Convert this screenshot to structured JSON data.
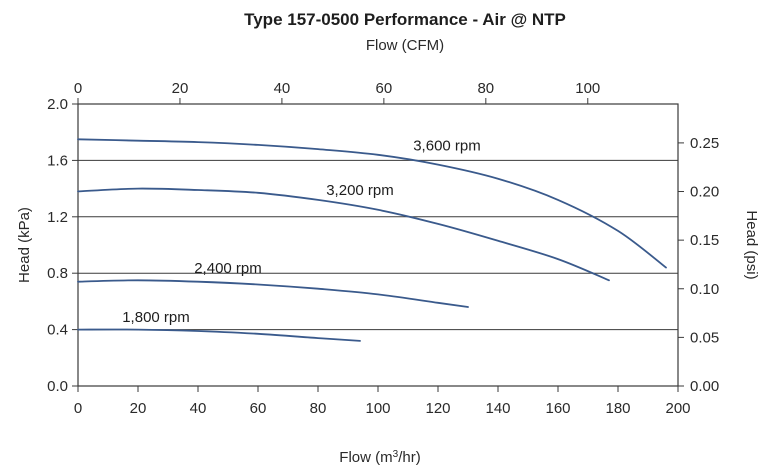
{
  "chart_data": {
    "type": "line",
    "title": "Type 157-0500 Performance - Air @ NTP",
    "top_axis_label": "Flow (CFM)",
    "xlabel": "Flow (m³/hr)",
    "ylabel_left": "Head (kPa)",
    "ylabel_right": "Head (psi)",
    "xlim": [
      0,
      200
    ],
    "ylim": [
      0,
      2.0
    ],
    "top_xlim": [
      0,
      117.7
    ],
    "right_ylim": [
      0,
      0.29
    ],
    "x_ticks": [
      "0",
      "20",
      "40",
      "60",
      "80",
      "100",
      "120",
      "140",
      "160",
      "180",
      "200"
    ],
    "y_ticks_left": [
      "0.0",
      "0.4",
      "0.8",
      "1.2",
      "1.6",
      "2.0"
    ],
    "top_ticks": [
      "0",
      "20",
      "40",
      "60",
      "80",
      "100"
    ],
    "y_ticks_right": [
      "0.00",
      "0.05",
      "0.10",
      "0.15",
      "0.20",
      "0.25"
    ],
    "grid": "horizontal",
    "line_color": "#3a5a8c",
    "series": [
      {
        "name": "3,600 rpm",
        "x": [
          0,
          20,
          40,
          60,
          80,
          100,
          120,
          140,
          160,
          180,
          196
        ],
        "y": [
          1.75,
          1.74,
          1.73,
          1.71,
          1.68,
          1.64,
          1.57,
          1.47,
          1.32,
          1.1,
          0.84
        ]
      },
      {
        "name": "3,200 rpm",
        "x": [
          0,
          20,
          40,
          60,
          80,
          100,
          120,
          140,
          160,
          177
        ],
        "y": [
          1.38,
          1.4,
          1.39,
          1.37,
          1.32,
          1.25,
          1.15,
          1.03,
          0.9,
          0.75
        ]
      },
      {
        "name": "2,400 rpm",
        "x": [
          0,
          20,
          40,
          60,
          80,
          100,
          120,
          130
        ],
        "y": [
          0.74,
          0.75,
          0.74,
          0.72,
          0.69,
          0.65,
          0.59,
          0.56
        ]
      },
      {
        "name": "1,800 rpm",
        "x": [
          0,
          20,
          40,
          60,
          80,
          94
        ],
        "y": [
          0.4,
          0.4,
          0.39,
          0.37,
          0.34,
          0.32
        ]
      }
    ]
  }
}
